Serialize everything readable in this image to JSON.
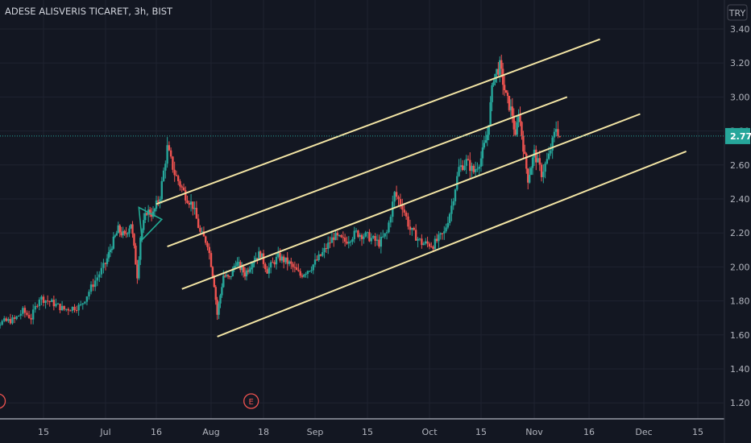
{
  "header": {
    "title": "ADESE ALISVERIS TICARET, 3h, BIST"
  },
  "currency_button": {
    "label": "TRY"
  },
  "earnings_marker": {
    "label": "E"
  },
  "chart_data": {
    "type": "candlestick",
    "ylim": [
      1.13,
      3.45
    ],
    "y_ticks": [
      1.2,
      1.4,
      1.6,
      1.8,
      2.0,
      2.2,
      2.4,
      2.6,
      2.8,
      3.0,
      3.2,
      3.4
    ],
    "y_tick_labels": [
      "1.20",
      "1.40",
      "1.60",
      "1.80",
      "2.00",
      "2.20",
      "2.40",
      "2.60",
      "2.80",
      "3.00",
      "3.20",
      "3.40"
    ],
    "x_ticks": [
      {
        "label": "15",
        "x": 15
      },
      {
        "label": "Jul",
        "x": 30
      },
      {
        "label": "16",
        "x": 46
      },
      {
        "label": "Aug",
        "x": 61
      },
      {
        "label": "18",
        "x": 78
      },
      {
        "label": "Sep",
        "x": 92
      },
      {
        "label": "15",
        "x": 106
      },
      {
        "label": "Oct",
        "x": 122
      },
      {
        "label": "15",
        "x": 136
      },
      {
        "label": "Nov",
        "x": 153
      },
      {
        "label": "16",
        "x": 168
      },
      {
        "label": "Dec",
        "x": 183
      },
      {
        "label": "15",
        "x": 197
      }
    ],
    "price_series": [
      {
        "x": 0,
        "price": 1.74
      },
      {
        "x": 4,
        "price": 1.67
      },
      {
        "x": 8,
        "price": 1.69
      },
      {
        "x": 10,
        "price": 1.74
      },
      {
        "x": 12,
        "price": 1.7
      },
      {
        "x": 14,
        "price": 1.82
      },
      {
        "x": 17,
        "price": 1.79
      },
      {
        "x": 20,
        "price": 1.75
      },
      {
        "x": 24,
        "price": 1.77
      },
      {
        "x": 27,
        "price": 1.9
      },
      {
        "x": 30,
        "price": 2.02
      },
      {
        "x": 32,
        "price": 2.13
      },
      {
        "x": 34,
        "price": 2.22
      },
      {
        "x": 36,
        "price": 2.18
      },
      {
        "x": 38,
        "price": 2.26
      },
      {
        "x": 40,
        "price": 1.95
      },
      {
        "x": 41,
        "price": 2.18
      },
      {
        "x": 43,
        "price": 2.33
      },
      {
        "x": 45,
        "price": 2.31
      },
      {
        "x": 47,
        "price": 2.42
      },
      {
        "x": 49,
        "price": 2.7
      },
      {
        "x": 51,
        "price": 2.55
      },
      {
        "x": 54,
        "price": 2.42
      },
      {
        "x": 56,
        "price": 2.36
      },
      {
        "x": 58,
        "price": 2.2
      },
      {
        "x": 60,
        "price": 2.14
      },
      {
        "x": 62,
        "price": 1.9
      },
      {
        "x": 63,
        "price": 1.72
      },
      {
        "x": 65,
        "price": 1.95
      },
      {
        "x": 67,
        "price": 1.93
      },
      {
        "x": 69,
        "price": 2.03
      },
      {
        "x": 72,
        "price": 1.96
      },
      {
        "x": 75,
        "price": 2.05
      },
      {
        "x": 77,
        "price": 2.08
      },
      {
        "x": 79,
        "price": 1.98
      },
      {
        "x": 82,
        "price": 2.06
      },
      {
        "x": 85,
        "price": 2.02
      },
      {
        "x": 88,
        "price": 1.95
      },
      {
        "x": 91,
        "price": 2.0
      },
      {
        "x": 94,
        "price": 2.08
      },
      {
        "x": 97,
        "price": 2.18
      },
      {
        "x": 100,
        "price": 2.15
      },
      {
        "x": 103,
        "price": 2.2
      },
      {
        "x": 106,
        "price": 2.18
      },
      {
        "x": 109,
        "price": 2.14
      },
      {
        "x": 111,
        "price": 2.2
      },
      {
        "x": 113,
        "price": 2.43
      },
      {
        "x": 115,
        "price": 2.36
      },
      {
        "x": 117,
        "price": 2.22
      },
      {
        "x": 120,
        "price": 2.14
      },
      {
        "x": 123,
        "price": 2.13
      },
      {
        "x": 126,
        "price": 2.2
      },
      {
        "x": 128,
        "price": 2.36
      },
      {
        "x": 130,
        "price": 2.58
      },
      {
        "x": 132,
        "price": 2.62
      },
      {
        "x": 134,
        "price": 2.56
      },
      {
        "x": 136,
        "price": 2.64
      },
      {
        "x": 138,
        "price": 2.78
      },
      {
        "x": 140,
        "price": 3.12
      },
      {
        "x": 142,
        "price": 3.18
      },
      {
        "x": 144,
        "price": 3.0
      },
      {
        "x": 146,
        "price": 2.9
      },
      {
        "x": 147,
        "price": 2.75
      },
      {
        "x": 148,
        "price": 2.92
      },
      {
        "x": 150,
        "price": 2.64
      },
      {
        "x": 151,
        "price": 2.52
      },
      {
        "x": 153,
        "price": 2.67
      },
      {
        "x": 155,
        "price": 2.55
      },
      {
        "x": 157,
        "price": 2.65
      },
      {
        "x": 159,
        "price": 2.82
      },
      {
        "x": 160,
        "price": 2.77
      }
    ],
    "last_price": {
      "value": 2.77,
      "label": "2.77"
    },
    "earnings_x": [
      4,
      74
    ],
    "channel_lines": [
      {
        "x1": 46,
        "y1": 2.37,
        "x2": 171,
        "y2": 3.34
      },
      {
        "x1": 49,
        "y1": 2.12,
        "x2": 162,
        "y2": 3.0
      },
      {
        "x1": 53,
        "y1": 1.87,
        "x2": 182,
        "y2": 2.9
      },
      {
        "x1": 63,
        "y1": 1.59,
        "x2": 194,
        "y2": 2.68
      }
    ],
    "triangle": [
      [
        40.5,
        2.35
      ],
      [
        47.5,
        2.28
      ],
      [
        41.5,
        2.16
      ]
    ]
  }
}
